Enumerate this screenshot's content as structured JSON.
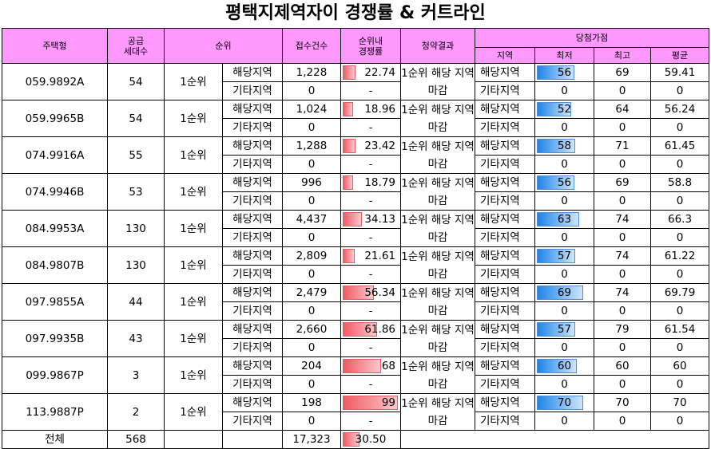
{
  "title": "평택지제역자이 경쟁률 & 커트라인",
  "colors": {
    "header_bg": "#ff99ff",
    "ratio_bar": "#f05a64",
    "score_bar": "#1e84e6"
  },
  "headers": {
    "type": "주택형",
    "supply": "공급\n세대수",
    "rank": "순위",
    "applications": "접수건수",
    "ratio": "순위내\n경쟁률",
    "result": "청약결과",
    "score_group": "당첨가점",
    "region": "지역",
    "min": "최저",
    "max": "최고",
    "avg": "평균"
  },
  "rows": [
    {
      "type": "059.9892A",
      "supply": "54",
      "rank": "1순위",
      "sub": [
        {
          "area": "해당지역",
          "apps": "1,228",
          "ratio": "22.74",
          "ratio_value": 22.74,
          "region": "해당지역",
          "min": "56",
          "min_value": 56,
          "max": "69",
          "avg": "59.41"
        },
        {
          "area": "기타지역",
          "apps": "0",
          "ratio": "-",
          "region": "기타지역",
          "min": "0",
          "max": "0",
          "avg": "0"
        }
      ],
      "result": "1순위 해당 지역 마감"
    },
    {
      "type": "059.9965B",
      "supply": "54",
      "rank": "1순위",
      "sub": [
        {
          "area": "해당지역",
          "apps": "1,024",
          "ratio": "18.96",
          "ratio_value": 18.96,
          "region": "해당지역",
          "min": "52",
          "min_value": 52,
          "max": "64",
          "avg": "56.24"
        },
        {
          "area": "기타지역",
          "apps": "0",
          "ratio": "-",
          "region": "기타지역",
          "min": "0",
          "max": "0",
          "avg": "0"
        }
      ],
      "result": "1순위 해당 지역 마감"
    },
    {
      "type": "074.9916A",
      "supply": "55",
      "rank": "1순위",
      "sub": [
        {
          "area": "해당지역",
          "apps": "1,288",
          "ratio": "23.42",
          "ratio_value": 23.42,
          "region": "해당지역",
          "min": "58",
          "min_value": 58,
          "max": "71",
          "avg": "61.45"
        },
        {
          "area": "기타지역",
          "apps": "0",
          "ratio": "-",
          "region": "기타지역",
          "min": "0",
          "max": "0",
          "avg": "0"
        }
      ],
      "result": "1순위 해당 지역 마감"
    },
    {
      "type": "074.9946B",
      "supply": "53",
      "rank": "1순위",
      "sub": [
        {
          "area": "해당지역",
          "apps": "996",
          "ratio": "18.79",
          "ratio_value": 18.79,
          "region": "해당지역",
          "min": "56",
          "min_value": 56,
          "max": "69",
          "avg": "58.8"
        },
        {
          "area": "기타지역",
          "apps": "0",
          "ratio": "-",
          "region": "기타지역",
          "min": "0",
          "max": "0",
          "avg": "0"
        }
      ],
      "result": "1순위 해당 지역 마감"
    },
    {
      "type": "084.9953A",
      "supply": "130",
      "rank": "1순위",
      "sub": [
        {
          "area": "해당지역",
          "apps": "4,437",
          "ratio": "34.13",
          "ratio_value": 34.13,
          "region": "해당지역",
          "min": "63",
          "min_value": 63,
          "max": "74",
          "avg": "66.3"
        },
        {
          "area": "기타지역",
          "apps": "0",
          "ratio": "-",
          "region": "기타지역",
          "min": "0",
          "max": "0",
          "avg": "0"
        }
      ],
      "result": "1순위 해당 지역 마감"
    },
    {
      "type": "084.9807B",
      "supply": "130",
      "rank": "1순위",
      "sub": [
        {
          "area": "해당지역",
          "apps": "2,809",
          "ratio": "21.61",
          "ratio_value": 21.61,
          "region": "해당지역",
          "min": "57",
          "min_value": 57,
          "max": "74",
          "avg": "61.22"
        },
        {
          "area": "기타지역",
          "apps": "0",
          "ratio": "-",
          "region": "기타지역",
          "min": "0",
          "max": "0",
          "avg": "0"
        }
      ],
      "result": "1순위 해당 지역 마감"
    },
    {
      "type": "097.9855A",
      "supply": "44",
      "rank": "1순위",
      "sub": [
        {
          "area": "해당지역",
          "apps": "2,479",
          "ratio": "56.34",
          "ratio_value": 56.34,
          "region": "해당지역",
          "min": "69",
          "min_value": 69,
          "max": "74",
          "avg": "69.79"
        },
        {
          "area": "기타지역",
          "apps": "0",
          "ratio": "-",
          "region": "기타지역",
          "min": "0",
          "max": "0",
          "avg": "0"
        }
      ],
      "result": "1순위 해당 지역 마감"
    },
    {
      "type": "097.9935B",
      "supply": "43",
      "rank": "1순위",
      "sub": [
        {
          "area": "해당지역",
          "apps": "2,660",
          "ratio": "61.86",
          "ratio_value": 61.86,
          "region": "해당지역",
          "min": "57",
          "min_value": 57,
          "max": "79",
          "avg": "61.54"
        },
        {
          "area": "기타지역",
          "apps": "0",
          "ratio": "-",
          "region": "기타지역",
          "min": "0",
          "max": "0",
          "avg": "0"
        }
      ],
      "result": "1순위 해당 지역 마감"
    },
    {
      "type": "099.9867P",
      "supply": "3",
      "rank": "1순위",
      "sub": [
        {
          "area": "해당지역",
          "apps": "204",
          "ratio": "68",
          "ratio_value": 68,
          "region": "해당지역",
          "min": "60",
          "min_value": 60,
          "max": "60",
          "avg": "60"
        },
        {
          "area": "기타지역",
          "apps": "0",
          "ratio": "-",
          "region": "기타지역",
          "min": "0",
          "max": "0",
          "avg": "0"
        }
      ],
      "result": "1순위 해당 지역 마감"
    },
    {
      "type": "113.9887P",
      "supply": "2",
      "rank": "1순위",
      "sub": [
        {
          "area": "해당지역",
          "apps": "198",
          "ratio": "99",
          "ratio_value": 99,
          "region": "해당지역",
          "min": "70",
          "min_value": 70,
          "max": "70",
          "avg": "70"
        },
        {
          "area": "기타지역",
          "apps": "0",
          "ratio": "-",
          "region": "기타지역",
          "min": "0",
          "max": "0",
          "avg": "0"
        }
      ],
      "result": "1순위 해당 지역 마감"
    }
  ],
  "total": {
    "label": "전체",
    "supply": "568",
    "apps": "17,323",
    "ratio": "30.50",
    "ratio_value": 30.5
  }
}
